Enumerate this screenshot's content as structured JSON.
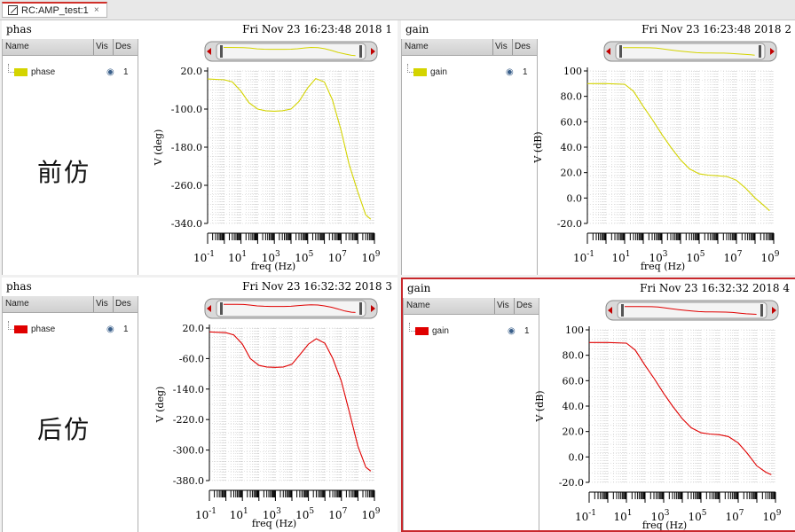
{
  "tab": {
    "label": "RC:AMP_test:1",
    "close": "×"
  },
  "legend_headers": {
    "name": "Name",
    "vis": "Vis",
    "des": "Des"
  },
  "annotations": {
    "pre": "前仿",
    "post": "后仿"
  },
  "panels": [
    {
      "id": 1,
      "title": "phas",
      "date": "Fri Nov 23 16:23:48 2018",
      "num": "1",
      "signal": "phase",
      "vis": "1",
      "color": "#d4d400",
      "active": false,
      "ylabel": "V (deg)",
      "xlabel": "freq (Hz)",
      "yticks": [
        "20.0",
        "-100.0",
        "-180.0",
        "-260.0",
        "-340.0"
      ]
    },
    {
      "id": 2,
      "title": "gain",
      "date": "Fri Nov 23 16:23:48 2018",
      "num": "2",
      "signal": "gain",
      "vis": "1",
      "color": "#d4d400",
      "active": false,
      "ylabel": "V (dB)",
      "xlabel": "freq (Hz)",
      "yticks": [
        "100",
        "80.0",
        "60.0",
        "40.0",
        "20.0",
        "0.0",
        "-20.0"
      ]
    },
    {
      "id": 3,
      "title": "phas",
      "date": "Fri Nov 23 16:32:32 2018",
      "num": "3",
      "signal": "phase",
      "vis": "1",
      "color": "#e00000",
      "active": false,
      "ylabel": "V (deg)",
      "xlabel": "freq (Hz)",
      "yticks": [
        "20.0",
        "-60.0",
        "-140.0",
        "-220.0",
        "-300.0",
        "-380.0"
      ]
    },
    {
      "id": 4,
      "title": "gain",
      "date": "Fri Nov 23 16:32:32 2018",
      "num": "4",
      "signal": "gain",
      "vis": "1",
      "color": "#e00000",
      "active": true,
      "ylabel": "V (dB)",
      "xlabel": "freq (Hz)",
      "yticks": [
        "100",
        "80.0",
        "60.0",
        "40.0",
        "20.0",
        "0.0",
        "-20.0"
      ]
    }
  ],
  "chart_data": [
    {
      "type": "line",
      "title": "phas",
      "xlabel": "freq (Hz)",
      "ylabel": "V (deg)",
      "xscale": "log",
      "xlim": [
        0.1,
        1000000000
      ],
      "ylim": [
        -340,
        20
      ],
      "xticks": [
        "10^-1",
        "10^1",
        "10^3",
        "10^5",
        "10^7",
        "10^9"
      ],
      "series": [
        {
          "name": "phase",
          "color": "#d4d400",
          "x": [
            0.1,
            1,
            3,
            10,
            30,
            100,
            300,
            1000,
            3000,
            10000,
            30000,
            100000,
            300000,
            1000000,
            3000000,
            10000000,
            30000000,
            100000000,
            300000000,
            600000000
          ],
          "y": [
            1,
            -1,
            -6,
            -28,
            -55,
            -70,
            -74,
            -75,
            -74,
            -70,
            -52,
            -20,
            2,
            -6,
            -48,
            -120,
            -200,
            -265,
            -320,
            -330
          ]
        }
      ],
      "grid": true
    },
    {
      "type": "line",
      "title": "gain",
      "xlabel": "freq (Hz)",
      "ylabel": "V (dB)",
      "xscale": "log",
      "xlim": [
        0.1,
        1000000000
      ],
      "ylim": [
        -20,
        100
      ],
      "xticks": [
        "10^-1",
        "10^1",
        "10^3",
        "10^5",
        "10^7",
        "10^9"
      ],
      "series": [
        {
          "name": "gain",
          "color": "#d4d400",
          "x": [
            0.1,
            1,
            10,
            30,
            100,
            300,
            1000,
            3000,
            10000,
            30000,
            100000,
            300000,
            1000000,
            3000000,
            10000000,
            30000000,
            100000000,
            300000000,
            600000000
          ],
          "y": [
            90,
            90,
            89.5,
            84,
            72,
            62,
            50,
            40,
            30,
            23,
            19,
            18,
            17.5,
            17,
            14,
            8,
            0,
            -6,
            -10
          ]
        }
      ],
      "grid": true
    },
    {
      "type": "line",
      "title": "phas",
      "xlabel": "freq (Hz)",
      "ylabel": "V (deg)",
      "xscale": "log",
      "xlim": [
        0.1,
        1000000000
      ],
      "ylim": [
        -380,
        20
      ],
      "xticks": [
        "10^-1",
        "10^1",
        "10^3",
        "10^5",
        "10^7",
        "10^9"
      ],
      "series": [
        {
          "name": "phase",
          "color": "#e00000",
          "x": [
            0.1,
            1,
            3,
            10,
            30,
            100,
            300,
            1000,
            3000,
            10000,
            30000,
            100000,
            300000,
            1000000,
            3000000,
            10000000,
            30000000,
            100000000,
            300000000,
            600000000
          ],
          "y": [
            10,
            8,
            2,
            -22,
            -60,
            -78,
            -82,
            -83,
            -82,
            -75,
            -50,
            -22,
            -8,
            -20,
            -60,
            -120,
            -200,
            -290,
            -345,
            -355
          ]
        }
      ],
      "grid": true
    },
    {
      "type": "line",
      "title": "gain",
      "xlabel": "freq (Hz)",
      "ylabel": "V (dB)",
      "xscale": "log",
      "xlim": [
        0.1,
        1000000000
      ],
      "ylim": [
        -20,
        100
      ],
      "xticks": [
        "10^-1",
        "10^1",
        "10^3",
        "10^5",
        "10^7",
        "10^9"
      ],
      "series": [
        {
          "name": "gain",
          "color": "#e00000",
          "x": [
            0.1,
            1,
            10,
            30,
            100,
            300,
            1000,
            3000,
            10000,
            30000,
            100000,
            300000,
            1000000,
            3000000,
            10000000,
            30000000,
            100000000,
            300000000,
            600000000
          ],
          "y": [
            90,
            90,
            89.5,
            84,
            72,
            62,
            50,
            40,
            30,
            23,
            19,
            18,
            17.5,
            16,
            11,
            3,
            -7,
            -12,
            -14
          ]
        }
      ],
      "grid": true
    }
  ]
}
